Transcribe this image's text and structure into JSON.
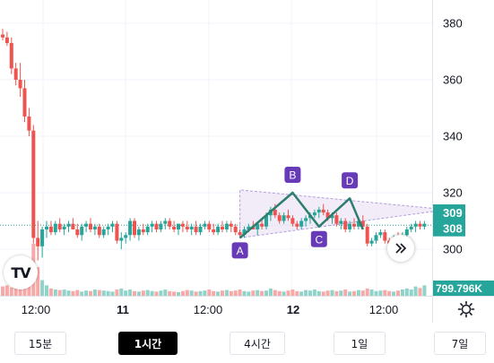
{
  "chart_data": {
    "type": "candlestick",
    "y_axis_ticks": [
      "380",
      "360",
      "340",
      "320",
      "300"
    ],
    "ylim": [
      291,
      391
    ],
    "x_axis_ticks": [
      "12:00",
      "11",
      "12:00",
      "12",
      "12:00"
    ],
    "price_badges": [
      "309",
      "308"
    ],
    "volume_badge": "799.796K",
    "pattern_labels": [
      "A",
      "B",
      "C",
      "D"
    ],
    "pattern_points": [
      {
        "label": "A",
        "x": 54,
        "y": 304
      },
      {
        "label": "B",
        "x": 66,
        "y": 320
      },
      {
        "label": "C",
        "x": 72,
        "y": 308
      },
      {
        "label": "D",
        "x": 79,
        "y": 318
      },
      {
        "end": true,
        "x": 82,
        "y": 307
      }
    ],
    "triangle": [
      [
        54,
        304
      ],
      [
        54,
        321
      ],
      [
        101,
        314
      ]
    ],
    "candles": [
      {
        "o": 376,
        "h": 378,
        "l": 374,
        "c": 375
      },
      {
        "o": 375,
        "h": 377,
        "l": 372,
        "c": 373
      },
      {
        "o": 373,
        "h": 375,
        "l": 362,
        "c": 364
      },
      {
        "o": 364,
        "h": 366,
        "l": 358,
        "c": 360
      },
      {
        "o": 360,
        "h": 366,
        "l": 354,
        "c": 357
      },
      {
        "o": 357,
        "h": 360,
        "l": 345,
        "c": 347
      },
      {
        "o": 347,
        "h": 350,
        "l": 340,
        "c": 342
      },
      {
        "o": 342,
        "h": 344,
        "l": 302,
        "c": 304
      },
      {
        "o": 304,
        "h": 310,
        "l": 296,
        "c": 301
      },
      {
        "o": 301,
        "h": 308,
        "l": 297,
        "c": 307
      },
      {
        "o": 307,
        "h": 310,
        "l": 304,
        "c": 308
      },
      {
        "o": 308,
        "h": 310,
        "l": 305,
        "c": 306
      },
      {
        "o": 306,
        "h": 310,
        "l": 305,
        "c": 309
      },
      {
        "o": 309,
        "h": 311,
        "l": 306,
        "c": 307
      },
      {
        "o": 307,
        "h": 309,
        "l": 305,
        "c": 308
      },
      {
        "o": 308,
        "h": 310,
        "l": 306,
        "c": 309
      },
      {
        "o": 309,
        "h": 311,
        "l": 307,
        "c": 307
      },
      {
        "o": 307,
        "h": 309,
        "l": 304,
        "c": 305
      },
      {
        "o": 305,
        "h": 309,
        "l": 303,
        "c": 308
      },
      {
        "o": 308,
        "h": 310,
        "l": 306,
        "c": 309
      },
      {
        "o": 309,
        "h": 311,
        "l": 306,
        "c": 307
      },
      {
        "o": 307,
        "h": 309,
        "l": 305,
        "c": 308
      },
      {
        "o": 308,
        "h": 309,
        "l": 304,
        "c": 305
      },
      {
        "o": 305,
        "h": 308,
        "l": 304,
        "c": 307
      },
      {
        "o": 307,
        "h": 309,
        "l": 305,
        "c": 308
      },
      {
        "o": 308,
        "h": 310,
        "l": 306,
        "c": 309
      },
      {
        "o": 309,
        "h": 310,
        "l": 302,
        "c": 303
      },
      {
        "o": 303,
        "h": 306,
        "l": 300,
        "c": 304
      },
      {
        "o": 304,
        "h": 306,
        "l": 302,
        "c": 305
      },
      {
        "o": 305,
        "h": 311,
        "l": 303,
        "c": 310
      },
      {
        "o": 310,
        "h": 311,
        "l": 304,
        "c": 305
      },
      {
        "o": 305,
        "h": 308,
        "l": 303,
        "c": 307
      },
      {
        "o": 307,
        "h": 309,
        "l": 305,
        "c": 306
      },
      {
        "o": 306,
        "h": 309,
        "l": 305,
        "c": 308
      },
      {
        "o": 308,
        "h": 310,
        "l": 306,
        "c": 309
      },
      {
        "o": 309,
        "h": 310,
        "l": 306,
        "c": 307
      },
      {
        "o": 307,
        "h": 310,
        "l": 306,
        "c": 309
      },
      {
        "o": 309,
        "h": 311,
        "l": 307,
        "c": 310
      },
      {
        "o": 310,
        "h": 311,
        "l": 307,
        "c": 308
      },
      {
        "o": 308,
        "h": 310,
        "l": 306,
        "c": 307
      },
      {
        "o": 307,
        "h": 309,
        "l": 305,
        "c": 309
      },
      {
        "o": 309,
        "h": 310,
        "l": 306,
        "c": 308
      },
      {
        "o": 308,
        "h": 310,
        "l": 306,
        "c": 307
      },
      {
        "o": 307,
        "h": 309,
        "l": 305,
        "c": 308
      },
      {
        "o": 308,
        "h": 310,
        "l": 305,
        "c": 306
      },
      {
        "o": 306,
        "h": 309,
        "l": 305,
        "c": 308
      },
      {
        "o": 308,
        "h": 310,
        "l": 307,
        "c": 309
      },
      {
        "o": 309,
        "h": 310,
        "l": 306,
        "c": 307
      },
      {
        "o": 307,
        "h": 309,
        "l": 305,
        "c": 306
      },
      {
        "o": 306,
        "h": 309,
        "l": 305,
        "c": 308
      },
      {
        "o": 308,
        "h": 310,
        "l": 306,
        "c": 307
      },
      {
        "o": 307,
        "h": 310,
        "l": 306,
        "c": 309
      },
      {
        "o": 309,
        "h": 310,
        "l": 306,
        "c": 308
      },
      {
        "o": 308,
        "h": 309,
        "l": 305,
        "c": 306
      },
      {
        "o": 306,
        "h": 307,
        "l": 304,
        "c": 305
      },
      {
        "o": 305,
        "h": 308,
        "l": 304,
        "c": 307
      },
      {
        "o": 307,
        "h": 309,
        "l": 306,
        "c": 308
      },
      {
        "o": 308,
        "h": 310,
        "l": 307,
        "c": 307
      },
      {
        "o": 307,
        "h": 309,
        "l": 305,
        "c": 309
      },
      {
        "o": 309,
        "h": 311,
        "l": 307,
        "c": 308
      },
      {
        "o": 308,
        "h": 313,
        "l": 307,
        "c": 312
      },
      {
        "o": 312,
        "h": 315,
        "l": 310,
        "c": 314
      },
      {
        "o": 314,
        "h": 316,
        "l": 311,
        "c": 312
      },
      {
        "o": 312,
        "h": 313,
        "l": 309,
        "c": 310
      },
      {
        "o": 310,
        "h": 313,
        "l": 309,
        "c": 312
      },
      {
        "o": 312,
        "h": 314,
        "l": 310,
        "c": 311
      },
      {
        "o": 311,
        "h": 312,
        "l": 308,
        "c": 309
      },
      {
        "o": 309,
        "h": 310,
        "l": 307,
        "c": 308
      },
      {
        "o": 308,
        "h": 311,
        "l": 307,
        "c": 310
      },
      {
        "o": 310,
        "h": 312,
        "l": 308,
        "c": 311
      },
      {
        "o": 311,
        "h": 313,
        "l": 309,
        "c": 312
      },
      {
        "o": 312,
        "h": 314,
        "l": 311,
        "c": 313
      },
      {
        "o": 313,
        "h": 315,
        "l": 311,
        "c": 314
      },
      {
        "o": 314,
        "h": 316,
        "l": 312,
        "c": 313
      },
      {
        "o": 313,
        "h": 314,
        "l": 310,
        "c": 311
      },
      {
        "o": 311,
        "h": 313,
        "l": 309,
        "c": 312
      },
      {
        "o": 312,
        "h": 313,
        "l": 308,
        "c": 309
      },
      {
        "o": 309,
        "h": 311,
        "l": 307,
        "c": 310
      },
      {
        "o": 310,
        "h": 311,
        "l": 306,
        "c": 307
      },
      {
        "o": 307,
        "h": 310,
        "l": 306,
        "c": 309
      },
      {
        "o": 309,
        "h": 311,
        "l": 307,
        "c": 308
      },
      {
        "o": 308,
        "h": 311,
        "l": 307,
        "c": 310
      },
      {
        "o": 310,
        "h": 312,
        "l": 307,
        "c": 308
      },
      {
        "o": 308,
        "h": 309,
        "l": 301,
        "c": 302
      },
      {
        "o": 302,
        "h": 304,
        "l": 301,
        "c": 303
      },
      {
        "o": 303,
        "h": 306,
        "l": 302,
        "c": 305
      },
      {
        "o": 305,
        "h": 307,
        "l": 304,
        "c": 306
      },
      {
        "o": 306,
        "h": 307,
        "l": 302,
        "c": 303
      },
      {
        "o": 303,
        "h": 304,
        "l": 301,
        "c": 302
      },
      {
        "o": 302,
        "h": 305,
        "l": 301,
        "c": 304
      },
      {
        "o": 304,
        "h": 306,
        "l": 302,
        "c": 303
      },
      {
        "o": 303,
        "h": 306,
        "l": 302,
        "c": 305
      },
      {
        "o": 305,
        "h": 308,
        "l": 304,
        "c": 307
      },
      {
        "o": 307,
        "h": 309,
        "l": 306,
        "c": 308
      },
      {
        "o": 308,
        "h": 310,
        "l": 306,
        "c": 309
      },
      {
        "o": 309,
        "h": 310,
        "l": 307,
        "c": 308
      },
      {
        "o": 308,
        "h": 310,
        "l": 307,
        "c": 309
      }
    ],
    "volumes": [
      18,
      20,
      16,
      22,
      19,
      25,
      28,
      100,
      55,
      30,
      20,
      14,
      12,
      11,
      12,
      10,
      9,
      11,
      8,
      10,
      9,
      12,
      11,
      10,
      9,
      8,
      12,
      14,
      10,
      12,
      9,
      8,
      10,
      11,
      9,
      8,
      10,
      12,
      9,
      8,
      7,
      9,
      11,
      10,
      8,
      9,
      10,
      12,
      9,
      8,
      10,
      11,
      9,
      10,
      12,
      9,
      8,
      10,
      11,
      9,
      10,
      14,
      11,
      9,
      8,
      10,
      12,
      9,
      8,
      11,
      10,
      12,
      9,
      8,
      10,
      11,
      9,
      10,
      12,
      8,
      9,
      11,
      10,
      14,
      12,
      9,
      10,
      11,
      9,
      8,
      10,
      12,
      14,
      12,
      18,
      15,
      20
    ]
  },
  "colors": {
    "up": "#26a69a",
    "down": "#ef5350",
    "up_volume": "#8fd3c9",
    "down_volume": "#f7a9a7",
    "pattern_line": "#2e7d6e",
    "pattern_label": "#673ab7",
    "triangle_fill": "#ede7f6"
  },
  "icons": {
    "logo": "tradingview-logo",
    "scroll": "double-chevron-right-icon",
    "settings": "gear-icon"
  },
  "logo_text": "TV",
  "timeframes": [
    {
      "label": "15분",
      "active": false
    },
    {
      "label": "1시간",
      "active": true
    },
    {
      "label": "4시간",
      "active": false
    },
    {
      "label": "1일",
      "active": false
    },
    {
      "label": "7일",
      "active": false
    }
  ]
}
